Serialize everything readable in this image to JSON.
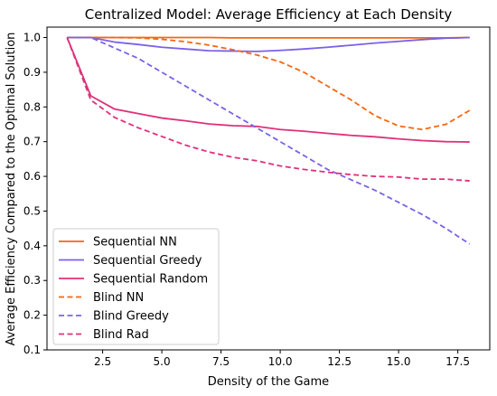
{
  "chart_data": {
    "type": "line",
    "title": "Centralized Model: Average Efficiency at Each Density",
    "xlabel": "Density of the Game",
    "ylabel": "Average Efficiency Compared to the Optimal Solution",
    "xlim": [
      0.15,
      18.85
    ],
    "ylim": [
      0.1,
      1.03
    ],
    "xticks": [
      2.5,
      5.0,
      7.5,
      10.0,
      12.5,
      15.0,
      17.5
    ],
    "xtick_labels": [
      "2.5",
      "5.0",
      "7.5",
      "10.0",
      "12.5",
      "15.0",
      "17.5"
    ],
    "yticks": [
      0.1,
      0.2,
      0.3,
      0.4,
      0.5,
      0.6,
      0.7,
      0.8,
      0.9,
      1.0
    ],
    "ytick_labels": [
      "0.1",
      "0.2",
      "0.3",
      "0.4",
      "0.5",
      "0.6",
      "0.7",
      "0.8",
      "0.9",
      "1.0"
    ],
    "grid": false,
    "legend_position": "lower-left",
    "x": [
      1,
      2,
      3,
      4,
      5,
      6,
      7,
      8,
      9,
      10,
      11,
      12,
      13,
      14,
      15,
      16,
      17,
      18
    ],
    "series": [
      {
        "name": "Sequential NN",
        "color": "#f5660f",
        "dash": "solid",
        "values": [
          1.0,
          1.0,
          1.0,
          1.0,
          1.0,
          1.0,
          1.0,
          0.999,
          0.999,
          0.999,
          0.999,
          0.999,
          0.999,
          0.999,
          0.999,
          0.999,
          0.999,
          1.0
        ]
      },
      {
        "name": "Sequential Greedy",
        "color": "#7b61e8",
        "dash": "solid",
        "values": [
          1.0,
          1.0,
          0.987,
          0.98,
          0.972,
          0.967,
          0.962,
          0.961,
          0.96,
          0.963,
          0.967,
          0.972,
          0.978,
          0.984,
          0.989,
          0.994,
          0.998,
          1.0
        ]
      },
      {
        "name": "Sequential Random",
        "color": "#e0307a",
        "dash": "solid",
        "values": [
          1.0,
          0.832,
          0.794,
          0.781,
          0.768,
          0.76,
          0.751,
          0.746,
          0.744,
          0.735,
          0.73,
          0.724,
          0.718,
          0.714,
          0.708,
          0.703,
          0.7,
          0.699
        ]
      },
      {
        "name": "Blind NN",
        "color": "#f5660f",
        "dash": "dashed",
        "values": [
          1.0,
          1.0,
          1.0,
          0.999,
          0.995,
          0.988,
          0.978,
          0.965,
          0.95,
          0.93,
          0.9,
          0.86,
          0.82,
          0.775,
          0.745,
          0.735,
          0.75,
          0.79
        ]
      },
      {
        "name": "Blind Greedy",
        "color": "#7b61e8",
        "dash": "dashed",
        "values": [
          1.0,
          1.0,
          0.97,
          0.94,
          0.9,
          0.86,
          0.82,
          0.78,
          0.74,
          0.7,
          0.66,
          0.62,
          0.59,
          0.56,
          0.525,
          0.49,
          0.45,
          0.405
        ]
      },
      {
        "name": "Blind Rad",
        "color": "#e0307a",
        "dash": "dashed",
        "values": [
          1.0,
          0.82,
          0.77,
          0.74,
          0.715,
          0.69,
          0.67,
          0.655,
          0.645,
          0.63,
          0.62,
          0.612,
          0.605,
          0.6,
          0.598,
          0.592,
          0.592,
          0.587
        ]
      }
    ]
  }
}
